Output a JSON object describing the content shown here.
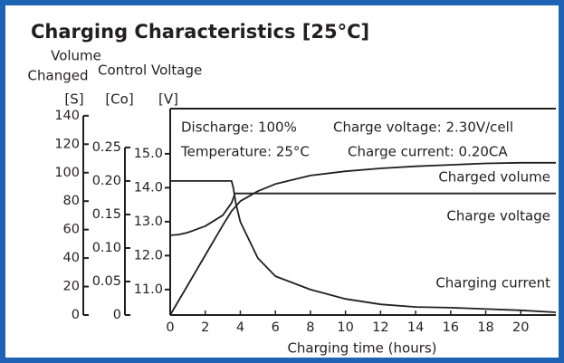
{
  "chart_data": {
    "type": "line",
    "title": "Charging Characteristics [25°C]",
    "y_label_lines": [
      "Volume",
      "Changed"
    ],
    "y2_label": "Control Voltage",
    "y_unit": "[S]",
    "y2_unit": "[Co]",
    "y3_unit": "[V]",
    "x_label": "Charging time (hours)",
    "annotations": [
      "Discharge: 100%",
      "Charge voltage: 2.30V/cell",
      "Temperature: 25°C",
      "Charge current: 0.20CA"
    ],
    "xlim": [
      0,
      22
    ],
    "xticks": [
      0,
      2,
      4,
      6,
      8,
      10,
      12,
      14,
      16,
      18,
      20
    ],
    "ylim": [
      0,
      145
    ],
    "yticks": [
      0,
      20,
      40,
      60,
      80,
      100,
      120,
      140
    ],
    "y2lim": [
      0,
      0.308
    ],
    "y2ticks": [
      0,
      {
        "value": 0.05,
        "label": "0.05"
      },
      {
        "value": 0.1,
        "label": "0.10"
      },
      {
        "value": 0.15,
        "label": "0.15"
      },
      {
        "value": 0.2,
        "label": "0.20"
      },
      0.25
    ],
    "y3lim": [
      10.25,
      16.33
    ],
    "y3ticks": [
      {
        "value": 11,
        "label": "11.0"
      },
      {
        "value": 12,
        "label": "12.0"
      },
      {
        "value": 13,
        "label": "13.0"
      },
      {
        "value": 14,
        "label": "14.0"
      },
      {
        "value": 15,
        "label": "15.0"
      }
    ],
    "series": [
      {
        "name": "Charged volume",
        "color": "#231f20",
        "axis": "y",
        "x": [
          0,
          1,
          2,
          3,
          3.5,
          4,
          5,
          6,
          8,
          10,
          12,
          14,
          16,
          18,
          20,
          22
        ],
        "values": [
          0,
          21,
          42,
          63,
          73,
          80,
          87,
          92,
          98,
          101,
          103,
          104.5,
          105.5,
          106.5,
          107,
          107
        ]
      },
      {
        "name": "Charge voltage",
        "color": "#231f20",
        "axis": "y3",
        "x": [
          0,
          0.5,
          1,
          2,
          3,
          3.5,
          3.7,
          22
        ],
        "values": [
          12.6,
          12.62,
          12.68,
          12.87,
          13.19,
          13.55,
          13.83,
          13.83
        ]
      },
      {
        "name": "Charging current",
        "color": "#231f20",
        "axis": "y2",
        "x": [
          0,
          3.5,
          3.6,
          3.75,
          4,
          5,
          6,
          8,
          10,
          12,
          14,
          16,
          20,
          22
        ],
        "values": [
          0.2,
          0.2,
          0.19,
          0.166,
          0.139,
          0.085,
          0.058,
          0.038,
          0.024,
          0.016,
          0.012,
          0.011,
          0.007,
          0.004
        ]
      }
    ]
  }
}
